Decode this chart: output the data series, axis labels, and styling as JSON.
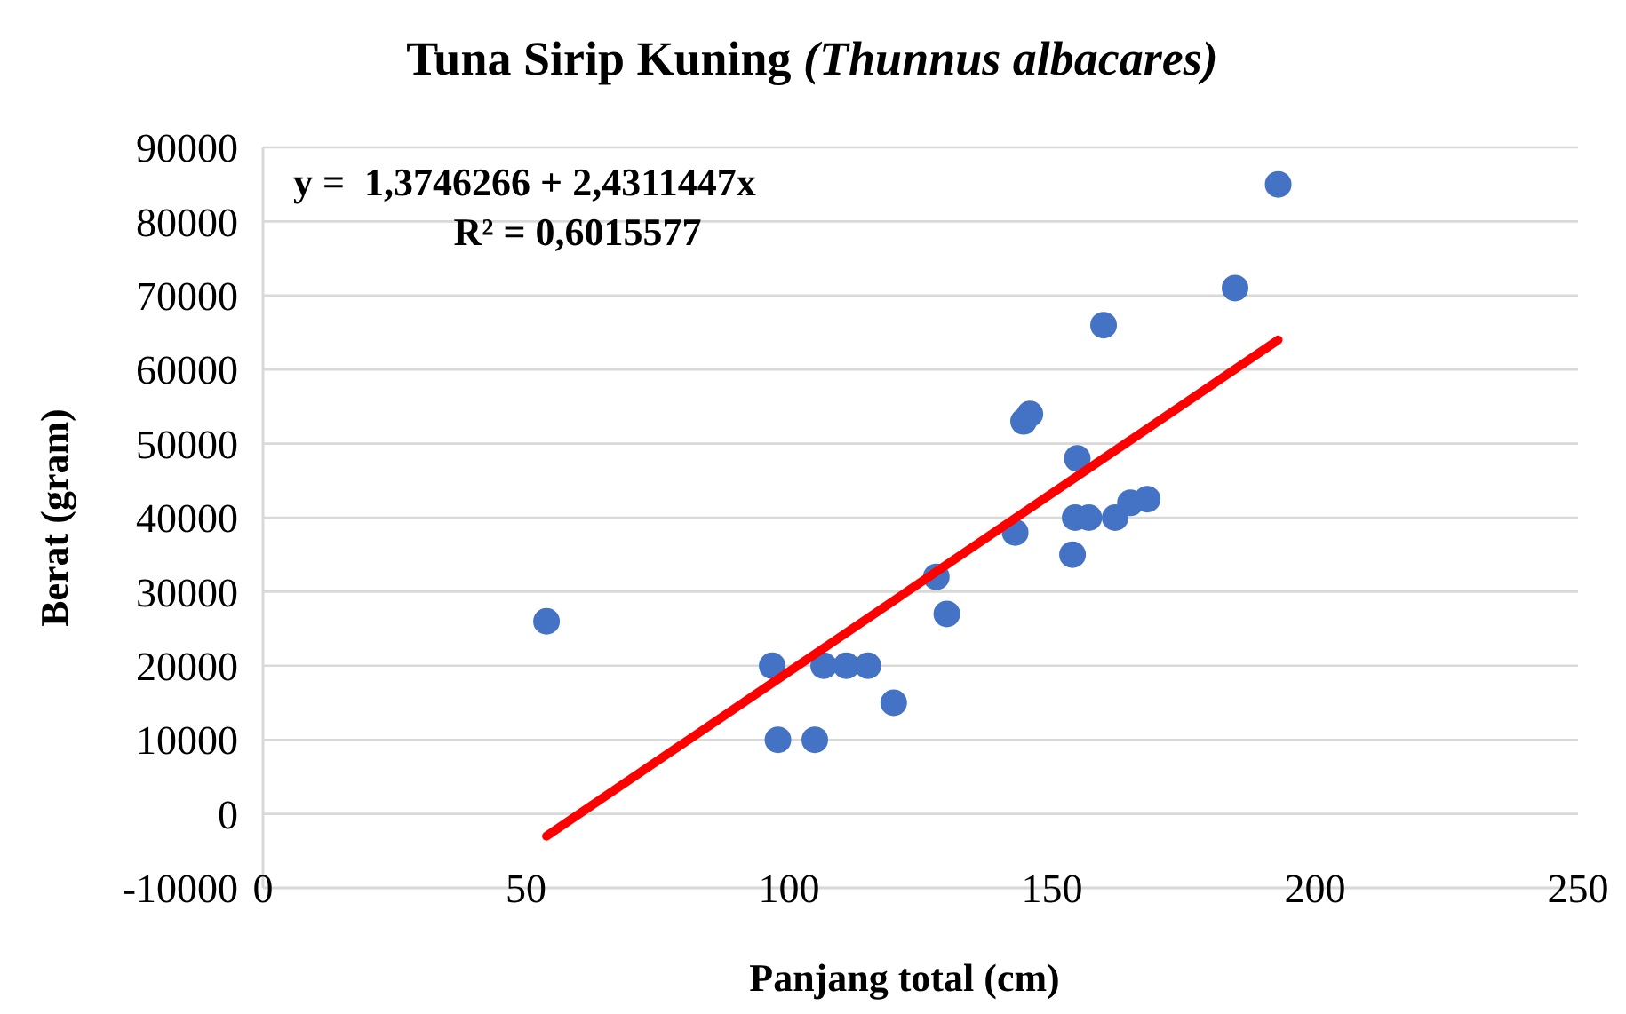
{
  "chart_data": {
    "type": "scatter",
    "title": "Tuna Sirip Kuning (Thunnus albacares)",
    "xlabel": "Panjang total (cm)",
    "ylabel": "Berat (gram)",
    "annotations": [
      "y =  1,3746266 + 2,4311447x",
      "R² = 0,6015577"
    ],
    "xlim": [
      0,
      250
    ],
    "xticks": [
      0,
      50,
      100,
      150,
      200,
      250
    ],
    "ylim": [
      -10000,
      90000
    ],
    "yticks": [
      -10000,
      0,
      10000,
      20000,
      30000,
      40000,
      50000,
      60000,
      70000,
      80000,
      90000
    ],
    "grid": "y",
    "marker": "circle",
    "series": [
      {
        "color": "#4472c4",
        "x": [
          53.9,
          96.8,
          97.9,
          104.9,
          106.6,
          110.9,
          115,
          119.9,
          128,
          130,
          143,
          144.6,
          145.8,
          153.9,
          154.4,
          154.8,
          157,
          159.8,
          162,
          164.9,
          168.1,
          184.8,
          193
        ],
        "values": [
          26000,
          20000,
          10000,
          10000,
          20000,
          20000,
          20000,
          15000,
          32000,
          27000,
          38000,
          53000,
          54000,
          35000,
          40000,
          48000,
          40000,
          66000,
          40000,
          42000,
          42500,
          71000,
          85000
        ]
      },
      {
        "type": "line",
        "color": "#ff0000",
        "marker": "none",
        "line_style": "solid",
        "x": [
          53.9,
          193
        ],
        "values": [
          -3000,
          64000
        ]
      }
    ]
  }
}
